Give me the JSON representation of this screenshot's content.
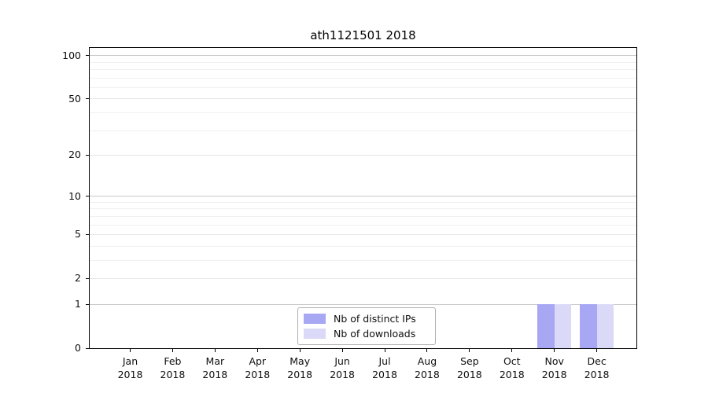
{
  "chart_data": {
    "type": "bar",
    "title": "ath1121501 2018",
    "categories": [
      "Jan",
      "Feb",
      "Mar",
      "Apr",
      "May",
      "Jun",
      "Jul",
      "Aug",
      "Sep",
      "Oct",
      "Nov",
      "Dec"
    ],
    "year_label": "2018",
    "series": [
      {
        "name": "Nb of distinct IPs",
        "color": "#a7a7f4",
        "values": [
          0,
          0,
          0,
          0,
          0,
          0,
          0,
          0,
          0,
          0,
          1,
          1
        ]
      },
      {
        "name": "Nb of downloads",
        "color": "#dadaf8",
        "values": [
          0,
          0,
          0,
          0,
          0,
          0,
          0,
          0,
          0,
          0,
          1,
          1
        ]
      }
    ],
    "xlabel": "",
    "ylabel": "",
    "y_scale": "log1p",
    "ylim": [
      0,
      113
    ],
    "y_ticks": [
      0,
      1,
      2,
      5,
      10,
      20,
      50,
      100
    ],
    "y_ticks_minor": [
      3,
      4,
      6,
      7,
      8,
      9,
      30,
      40,
      60,
      70,
      80,
      90
    ],
    "y_major_powers": [
      1,
      10,
      100
    ],
    "grid": "on",
    "legend_position": "lower center"
  }
}
